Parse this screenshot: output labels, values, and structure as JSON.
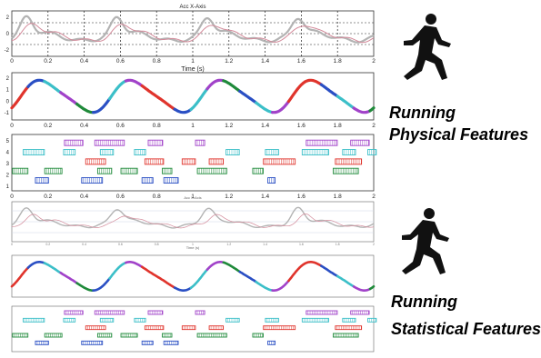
{
  "panel_top_title": "Acc X-Axis",
  "panel_top_xlabel": "Time (s)",
  "panel_stat_title": "Acc X-Axis",
  "panel_stat_xlabel": "Time (s)",
  "x_ticks": [
    "0",
    "0.2",
    "0.4",
    "0.6",
    "0.8",
    "1",
    "1.2",
    "1.4",
    "1.6",
    "1.8",
    "2"
  ],
  "y_ticks_top": [
    "2",
    "0",
    "-2"
  ],
  "y_ticks_seg": [
    "2",
    "1",
    "0",
    "-1"
  ],
  "y_ticks_bands": [
    "5",
    "4",
    "3",
    "2",
    "1"
  ],
  "colors": {
    "signal_gray": "#b3b3b3",
    "signal_pink": "#d38a9a",
    "blue": "#2a4fc4",
    "red": "#e0342c",
    "green": "#1f8a3a",
    "purple": "#a142c9",
    "cyan": "#3bbfc8"
  },
  "captions": {
    "physical_line1": "Running",
    "physical_line2": "Physical Features",
    "statistical_line1": "Running",
    "statistical_line2": "Statistical Features"
  },
  "icons": [
    "runner-silhouette-icon",
    "runner-silhouette-icon"
  ]
}
